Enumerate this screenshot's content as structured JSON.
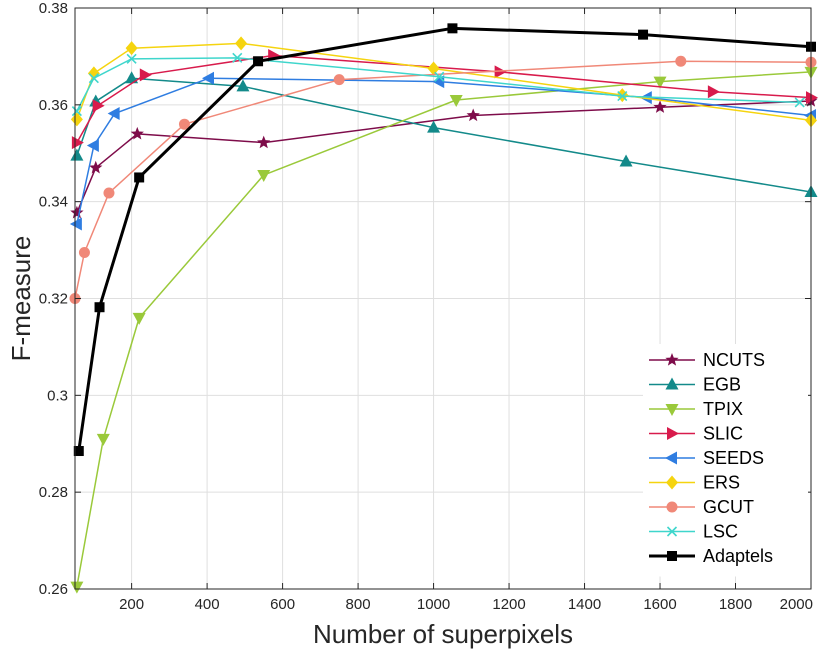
{
  "chart_data": {
    "type": "line",
    "title": "",
    "xlabel": "Number of superpixels",
    "ylabel": "F-measure",
    "xlim": [
      50,
      2000
    ],
    "ylim": [
      0.26,
      0.38
    ],
    "grid": true,
    "legend_position": "bottom-right",
    "x_ticks": [
      200,
      400,
      600,
      800,
      1000,
      1200,
      1400,
      1600,
      1800,
      2000
    ],
    "x_tick_labels": [
      "200",
      "400",
      "600",
      "800",
      "1000",
      "1200",
      "1400",
      "1600",
      "1800",
      "2000"
    ],
    "y_ticks": [
      0.26,
      0.28,
      0.3,
      0.32,
      0.34,
      0.36,
      0.38
    ],
    "y_tick_labels": [
      "0.26",
      "0.28",
      "0.3",
      "0.32",
      "0.34",
      "0.36",
      "0.38"
    ],
    "series": [
      {
        "name": "NCUTS",
        "color": "#7e0c4a",
        "marker": "star",
        "line_width": 1.5,
        "x": [
          55,
          105,
          215,
          550,
          1105,
          1600,
          2000
        ],
        "y": [
          0.3377,
          0.347,
          0.354,
          0.3522,
          0.3578,
          0.3595,
          0.3608
        ]
      },
      {
        "name": "EGB",
        "color": "#138a8a",
        "marker": "triangle-up",
        "line_width": 1.5,
        "x": [
          55,
          105,
          200,
          495,
          1000,
          1510,
          2000
        ],
        "y": [
          0.3495,
          0.3607,
          0.3655,
          0.3638,
          0.3553,
          0.3483,
          0.342
        ]
      },
      {
        "name": "TPIX",
        "color": "#9ac93a",
        "marker": "triangle-down",
        "line_width": 1.5,
        "x": [
          55,
          125,
          220,
          550,
          1060,
          1600,
          2000
        ],
        "y": [
          0.2605,
          0.291,
          0.316,
          0.3455,
          0.361,
          0.3648,
          0.3668
        ]
      },
      {
        "name": "SLIC",
        "color": "#d81b4c",
        "marker": "triangle-right",
        "line_width": 1.5,
        "x": [
          55,
          110,
          235,
          575,
          1175,
          1740,
          2000
        ],
        "y": [
          0.3522,
          0.3598,
          0.3662,
          0.3702,
          0.3668,
          0.3627,
          0.3615
        ]
      },
      {
        "name": "SEEDS",
        "color": "#2f7de1",
        "marker": "triangle-left",
        "line_width": 1.5,
        "x": [
          55,
          100,
          155,
          405,
          1015,
          1565,
          2000
        ],
        "y": [
          0.3354,
          0.3516,
          0.3582,
          0.3655,
          0.3648,
          0.3615,
          0.3578
        ]
      },
      {
        "name": "ERS",
        "color": "#f5d40f",
        "marker": "diamond",
        "line_width": 1.5,
        "x": [
          55,
          100,
          200,
          490,
          1000,
          1500,
          2000
        ],
        "y": [
          0.357,
          0.3665,
          0.3717,
          0.3727,
          0.3675,
          0.362,
          0.3568
        ]
      },
      {
        "name": "GCUT",
        "color": "#f08878",
        "marker": "circle",
        "line_width": 1.5,
        "x": [
          50,
          75,
          140,
          340,
          750,
          1655,
          2000
        ],
        "y": [
          0.32,
          0.3295,
          0.3418,
          0.356,
          0.3652,
          0.369,
          0.3688
        ]
      },
      {
        "name": "LSC",
        "color": "#3fd6cc",
        "marker": "x",
        "line_width": 1.5,
        "x": [
          55,
          100,
          200,
          480,
          1015,
          1500,
          1970
        ],
        "y": [
          0.3587,
          0.3655,
          0.3695,
          0.3697,
          0.3658,
          0.3618,
          0.3605
        ]
      },
      {
        "name": "Adaptels",
        "color": "#000000",
        "marker": "square",
        "line_width": 3,
        "x": [
          60,
          115,
          220,
          535,
          1050,
          1555,
          2000
        ],
        "y": [
          0.2885,
          0.3182,
          0.345,
          0.369,
          0.3758,
          0.3745,
          0.372
        ]
      }
    ]
  }
}
